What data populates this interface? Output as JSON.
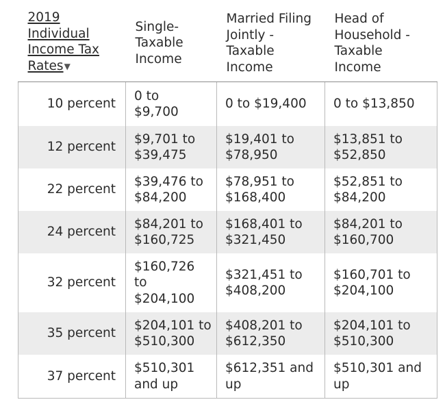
{
  "table": {
    "header": {
      "rate_label": "2019\nIndividual\nIncome Tax\nRates",
      "sort_icon": "▼",
      "single": "Single-\nTaxable\nIncome",
      "married": "Married Filing\nJointly -\nTaxable\nIncome",
      "household": "Head of\nHousehold -\nTaxable\nIncome"
    },
    "rows": [
      {
        "rate": "10 percent",
        "single": "0 to\n$9,700",
        "married": "0 to $19,400",
        "household": "0 to $13,850"
      },
      {
        "rate": "12 percent",
        "single": "$9,701 to\n$39,475",
        "married": "$19,401 to\n$78,950",
        "household": "$13,851 to\n$52,850"
      },
      {
        "rate": "22 percent",
        "single": "$39,476 to\n$84,200",
        "married": "$78,951 to\n$168,400",
        "household": "$52,851 to\n$84,200"
      },
      {
        "rate": "24 percent",
        "single": "$84,201 to\n$160,725",
        "married": "$168,401 to\n$321,450",
        "household": "$84,201 to\n$160,700"
      },
      {
        "rate": "32 percent",
        "single": "$160,726\nto\n$204,100",
        "married": "$321,451 to\n$408,200",
        "household": "$160,701 to\n$204,100"
      },
      {
        "rate": "35 percent",
        "single": "$204,101 to\n$510,300",
        "married": "$408,201 to\n$612,350",
        "household": "$204,101 to\n$510,300"
      },
      {
        "rate": "37 percent",
        "single": "$510,301\nand up",
        "married": "$612,351 and\nup",
        "household": "$510,301 and\nup"
      }
    ]
  },
  "icons": {
    "sort": "triangle-down-icon"
  }
}
